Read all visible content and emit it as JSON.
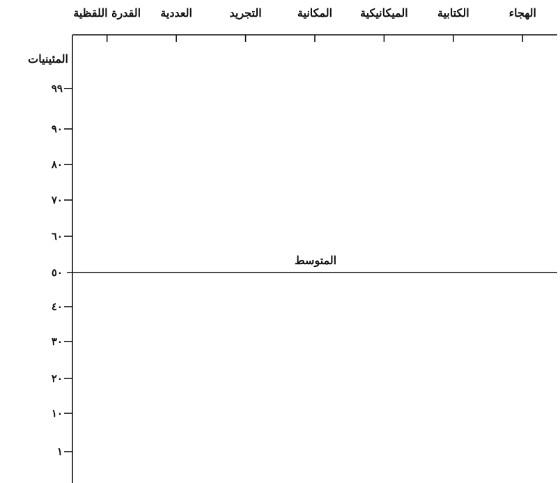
{
  "chart_data": {
    "type": "line",
    "categories": [
      "الهجاء",
      "الكتابية",
      "الميكانيكية",
      "المكانية",
      "التجريد",
      "العددية",
      "القدرة اللقظية"
    ],
    "ylabel": "المئينيات",
    "yticks": [
      {
        "value": 1,
        "label": "١"
      },
      {
        "value": 10,
        "label": "١٠"
      },
      {
        "value": 20,
        "label": "٢٠"
      },
      {
        "value": 30,
        "label": "٣٠"
      },
      {
        "value": 40,
        "label": "٤٠"
      },
      {
        "value": 50,
        "label": "٥٠"
      },
      {
        "value": 60,
        "label": "٦٠"
      },
      {
        "value": 70,
        "label": "٧٠"
      },
      {
        "value": 80,
        "label": "٨٠"
      },
      {
        "value": 90,
        "label": "٩٠"
      },
      {
        "value": 99,
        "label": "٩٩"
      }
    ],
    "reference_line": {
      "value": 50,
      "label": "المتوسط"
    },
    "series": []
  }
}
